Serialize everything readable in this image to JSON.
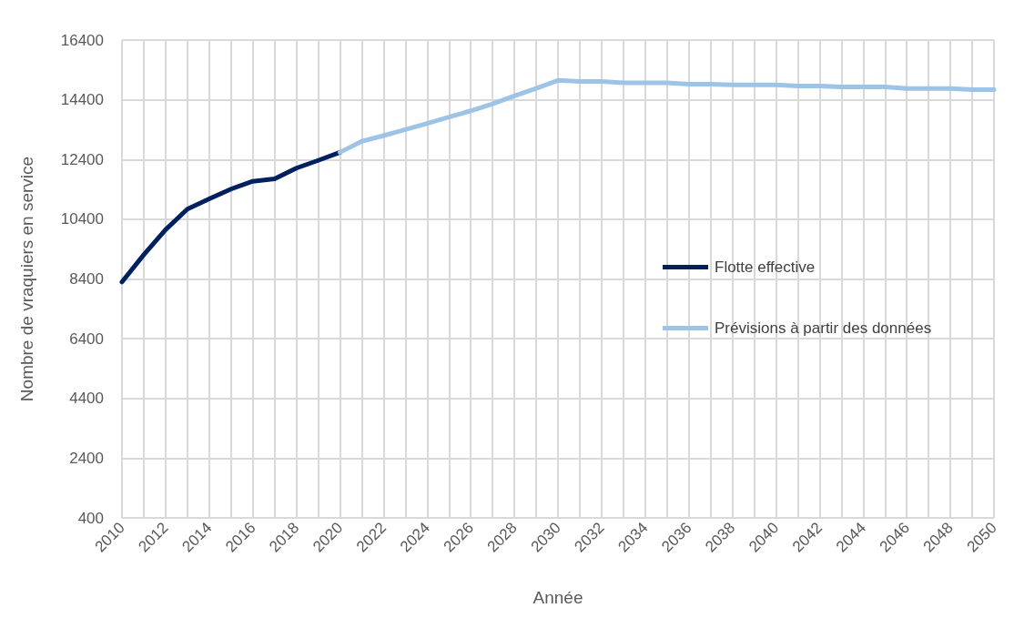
{
  "chart_data": {
    "type": "line",
    "xlabel": "Année",
    "ylabel": "Nombre de vraquiers en service",
    "categories": [
      "2010",
      null,
      "2012",
      null,
      "2014",
      null,
      "2016",
      null,
      "2018",
      null,
      "2020",
      null,
      "2022",
      null,
      "2024",
      null,
      "2026",
      null,
      "2028",
      null,
      "2030",
      null,
      "2032",
      null,
      "2034",
      null,
      "2036",
      null,
      "2038",
      null,
      "2040",
      null,
      "2042",
      null,
      "2044",
      null,
      "2046",
      null,
      "2048",
      null,
      "2050"
    ],
    "series": [
      {
        "name": "Flotte effective",
        "color": "#002060",
        "values": [
          8300,
          9210,
          10050,
          10740,
          11080,
          11410,
          11670,
          11750,
          12110,
          12370,
          12640,
          null,
          null,
          null,
          null,
          null,
          null,
          null,
          null,
          null,
          null,
          null,
          null,
          null,
          null,
          null,
          null,
          null,
          null,
          null,
          null,
          null,
          null,
          null,
          null,
          null,
          null,
          null,
          null,
          null,
          null
        ]
      },
      {
        "name": "Prévisions à partir des données",
        "color": "#9dc3e6",
        "values": [
          null,
          null,
          null,
          null,
          null,
          null,
          null,
          null,
          null,
          null,
          12640,
          13010,
          13200,
          13400,
          13610,
          13820,
          14030,
          14260,
          14530,
          14780,
          15050,
          15010,
          15010,
          14970,
          14970,
          14970,
          14920,
          14920,
          14900,
          14900,
          14900,
          14860,
          14860,
          14830,
          14830,
          14830,
          14780,
          14780,
          14780,
          14740,
          14740
        ]
      }
    ],
    "ylim": [
      400,
      16400
    ],
    "yticks": [
      400,
      2400,
      4400,
      6400,
      8400,
      10400,
      12400,
      14400,
      16400
    ],
    "grid": true,
    "legend": "right",
    "marker": "none",
    "line_style": "solid"
  }
}
